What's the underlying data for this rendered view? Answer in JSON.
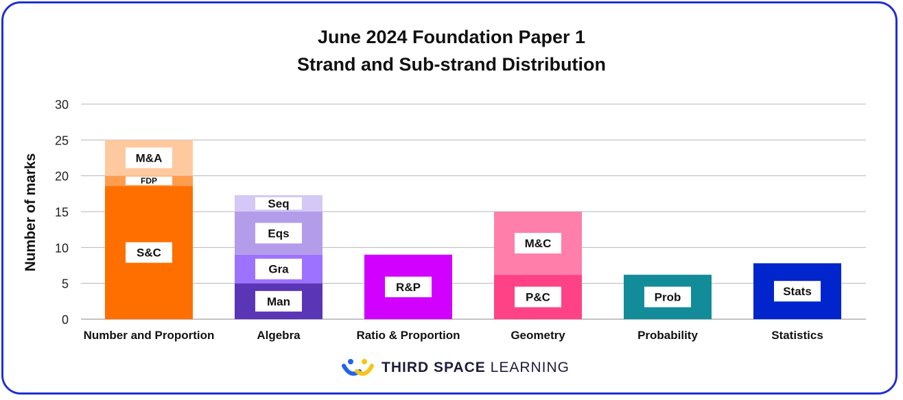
{
  "chart_data": {
    "type": "bar",
    "stacked": true,
    "title_line1": "June 2024 Foundation Paper 1",
    "title_line2": "Strand and Sub-strand Distribution",
    "ylabel": "Number of marks",
    "xlabel": "",
    "ylim": [
      0,
      30
    ],
    "yticks": [
      0,
      5,
      10,
      15,
      20,
      25,
      30
    ],
    "grid": true,
    "categories": [
      {
        "name": "Number and Proportion",
        "segments": [
          {
            "label": "S&C",
            "value": 18.6,
            "color": "#ff6f00"
          },
          {
            "label": "FDP",
            "value": 1.4,
            "color": "#ff9d4f"
          },
          {
            "label": "M&A",
            "value": 5,
            "color": "#ffc9a0"
          }
        ]
      },
      {
        "name": "Algebra",
        "segments": [
          {
            "label": "Man",
            "value": 5,
            "color": "#5a35b5"
          },
          {
            "label": "Gra",
            "value": 4,
            "color": "#9d72ff"
          },
          {
            "label": "Eqs",
            "value": 6,
            "color": "#b39cea"
          },
          {
            "label": "Seq",
            "value": 2.3,
            "color": "#d4c8f6"
          }
        ]
      },
      {
        "name": "Ratio & Proportion",
        "segments": [
          {
            "label": "R&P",
            "value": 9,
            "color": "#d200ff"
          }
        ]
      },
      {
        "name": "Geometry",
        "segments": [
          {
            "label": "P&C",
            "value": 6.2,
            "color": "#ff4285"
          },
          {
            "label": "M&C",
            "value": 8.8,
            "color": "#ff7eaa"
          }
        ]
      },
      {
        "name": "Probability",
        "segments": [
          {
            "label": "Prob",
            "value": 6.2,
            "color": "#138c9a"
          }
        ]
      },
      {
        "name": "Statistics",
        "segments": [
          {
            "label": "Stats",
            "value": 7.8,
            "color": "#0025cc"
          }
        ]
      }
    ]
  },
  "brand": {
    "name_bold": "THIRD SPACE",
    "name_light": "LEARNING",
    "colors": {
      "blue": "#2563eb",
      "yellow": "#f5c518",
      "border": "#1f2fd1"
    }
  }
}
